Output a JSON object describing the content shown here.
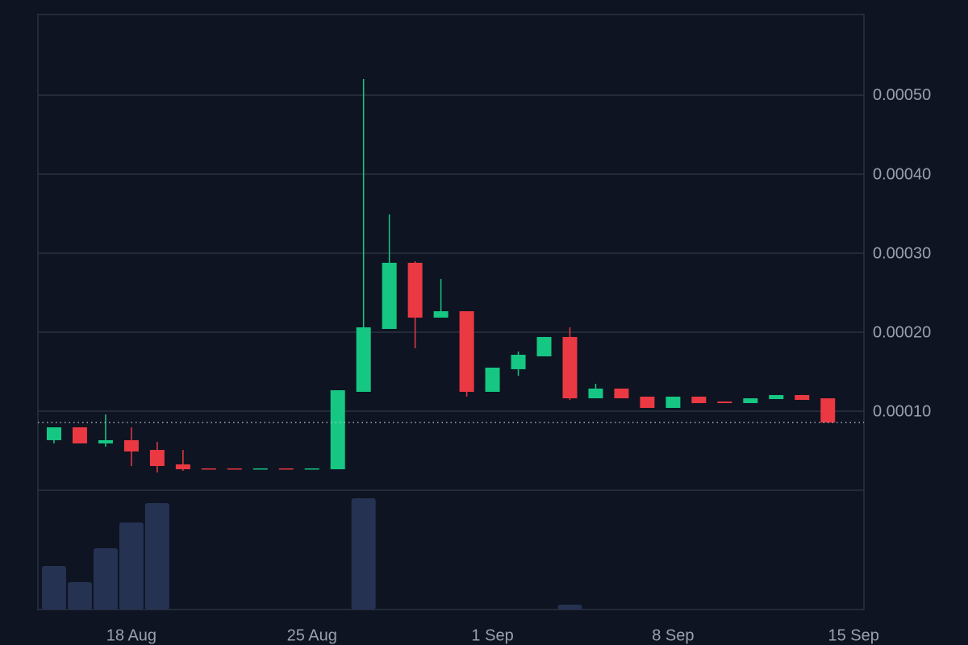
{
  "chart_data": {
    "type": "candlestick",
    "x": [
      0,
      1,
      2,
      3,
      4,
      5,
      6,
      7,
      8,
      9,
      10,
      11,
      12,
      13,
      14,
      15,
      16,
      17,
      18,
      19,
      20,
      21,
      22,
      23,
      24,
      25,
      26,
      27,
      28,
      29,
      30
    ],
    "open": [
      6.33e-05,
      7.96e-05,
      5.92e-05,
      6.33e-05,
      5.1e-05,
      3.27e-05,
      2.76e-05,
      2.76e-05,
      2.7e-05,
      2.76e-05,
      2.7e-05,
      2.65e-05,
      0.0001245,
      0.0002041,
      0.0002878,
      0.0002184,
      0.0002265,
      0.0001245,
      0.0001531,
      0.0001694,
      0.0001939,
      0.0001163,
      0.0001286,
      0.0001184,
      0.0001041,
      0.0001184,
      0.0001122,
      0.0001102,
      0.0001153,
      0.0001204,
      0.0001163
    ],
    "high": [
      7.96e-05,
      7.96e-05,
      9.59e-05,
      7.96e-05,
      6.12e-05,
      5.1e-05,
      2.76e-05,
      2.76e-05,
      2.76e-05,
      2.76e-05,
      2.76e-05,
      0.0001265,
      0.0005204,
      0.000349,
      0.0002898,
      0.0002673,
      0.0002265,
      0.0001551,
      0.0001755,
      0.0001939,
      0.0002061,
      0.0001347,
      0.0001286,
      0.0001184,
      0.0001184,
      0.0001184,
      0.0001122,
      0.0001163,
      0.0001204,
      0.0001204,
      0.0001163
    ],
    "low": [
      5.92e-05,
      5.92e-05,
      5.51e-05,
      3.06e-05,
      2.24e-05,
      2.45e-05,
      2.7e-05,
      2.7e-05,
      2.7e-05,
      2.7e-05,
      2.7e-05,
      2.65e-05,
      0.0001245,
      0.0002041,
      0.0001796,
      0.0002184,
      0.0001184,
      0.0001245,
      0.0001449,
      0.0001694,
      0.0001143,
      0.0001163,
      0.0001163,
      0.0001041,
      0.0001041,
      0.0001102,
      0.0001102,
      0.0001102,
      0.0001153,
      0.0001143,
      8.57e-05
    ],
    "close": [
      7.96e-05,
      5.92e-05,
      6.33e-05,
      4.9e-05,
      3.06e-05,
      2.65e-05,
      2.7e-05,
      2.7e-05,
      2.76e-05,
      2.7e-05,
      2.76e-05,
      0.0001265,
      0.0002061,
      0.0002878,
      0.0002184,
      0.0002265,
      0.0001245,
      0.0001551,
      0.0001714,
      0.0001939,
      0.0001163,
      0.0001286,
      0.0001163,
      0.0001041,
      0.0001184,
      0.0001102,
      0.0001102,
      0.0001163,
      0.0001204,
      0.0001143,
      8.57e-05
    ],
    "volume": [
      54,
      34,
      76,
      108,
      132,
      0,
      0,
      0,
      0,
      0,
      0,
      0,
      138,
      0,
      0,
      0,
      0,
      0,
      0,
      0,
      6,
      0,
      0,
      0,
      0,
      0,
      0,
      0,
      0,
      0,
      0
    ],
    "xlim": [
      -0.625,
      31.4
    ],
    "xticks": [
      {
        "value": 3,
        "label": "18 Aug"
      },
      {
        "value": 10,
        "label": "25 Aug"
      },
      {
        "value": 17,
        "label": "1 Sep"
      },
      {
        "value": 24,
        "label": "8 Sep"
      },
      {
        "value": 31,
        "label": "15 Sep"
      }
    ],
    "ylim": [
      0,
      0.000602
    ],
    "yticks": [
      {
        "value": 0.0001,
        "label": "0.00010"
      },
      {
        "value": 0.0002,
        "label": "0.00020"
      },
      {
        "value": 0.0003,
        "label": "0.00030"
      },
      {
        "value": 0.0004,
        "label": "0.00040"
      },
      {
        "value": 0.0005,
        "label": "0.00050"
      }
    ],
    "grid": true,
    "up_color": "#16c784",
    "down_color": "#ea3943",
    "volume_color": "#263252"
  }
}
